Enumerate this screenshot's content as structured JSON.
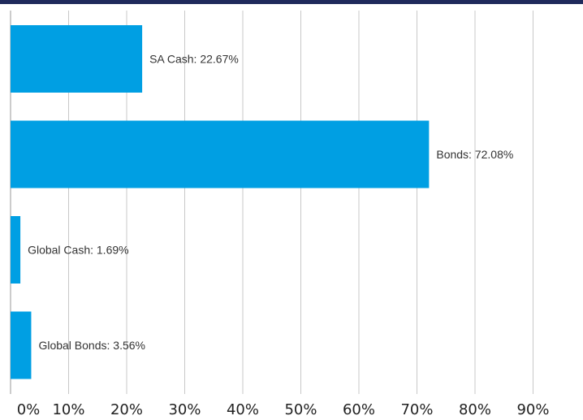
{
  "colors": {
    "top_bar": "#1f2a5c",
    "bar": "#009fe3",
    "grid": "#c8c8c8",
    "axis": "#999999"
  },
  "chart_data": {
    "type": "bar",
    "orientation": "horizontal",
    "categories": [
      "SA Cash",
      "Bonds",
      "Global Cash",
      "Global Bonds"
    ],
    "values": [
      22.67,
      72.08,
      1.69,
      3.56
    ],
    "data_labels": [
      "SA Cash: 22.67%",
      "Bonds: 72.08%",
      "Global Cash: 1.69%",
      "Global Bonds: 3.56%"
    ],
    "x_ticks": [
      "0%",
      "10%",
      "20%",
      "30%",
      "40%",
      "50%",
      "60%",
      "70%",
      "80%",
      "90%"
    ],
    "x_tick_values": [
      0,
      10,
      20,
      30,
      40,
      50,
      60,
      70,
      80,
      90
    ],
    "xlim": [
      0,
      100
    ],
    "grid": true,
    "legend": false
  }
}
